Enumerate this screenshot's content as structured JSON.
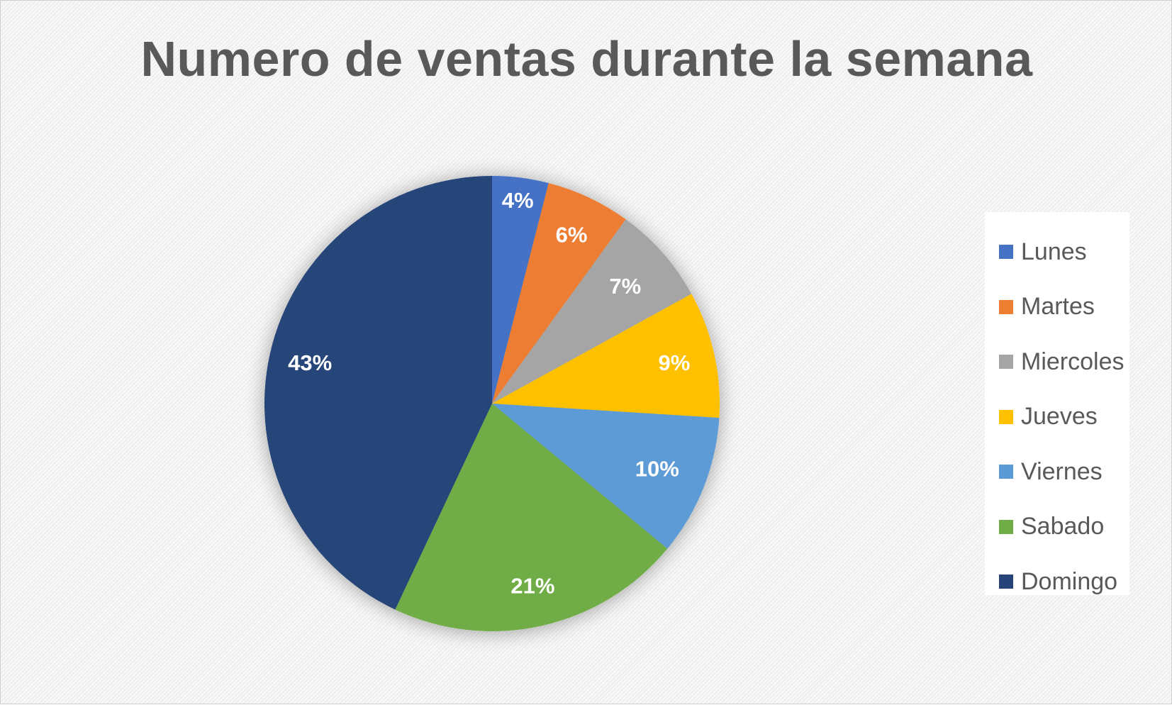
{
  "chart_data": {
    "type": "pie",
    "title": "Numero de ventas durante la semana",
    "categories": [
      "Lunes",
      "Martes",
      "Miercoles",
      "Jueves",
      "Viernes",
      "Sabado",
      "Domingo"
    ],
    "values": [
      4,
      6,
      7,
      9,
      10,
      21,
      43
    ],
    "data_labels": [
      "4%",
      "6%",
      "7%",
      "9%",
      "10%",
      "21%",
      "43%"
    ],
    "colors": [
      "#4472C4",
      "#ED7D31",
      "#A5A5A5",
      "#FFC000",
      "#5B9BD5",
      "#70AD47",
      "#264478"
    ],
    "legend_position": "right",
    "start_angle": "top, clockwise"
  }
}
